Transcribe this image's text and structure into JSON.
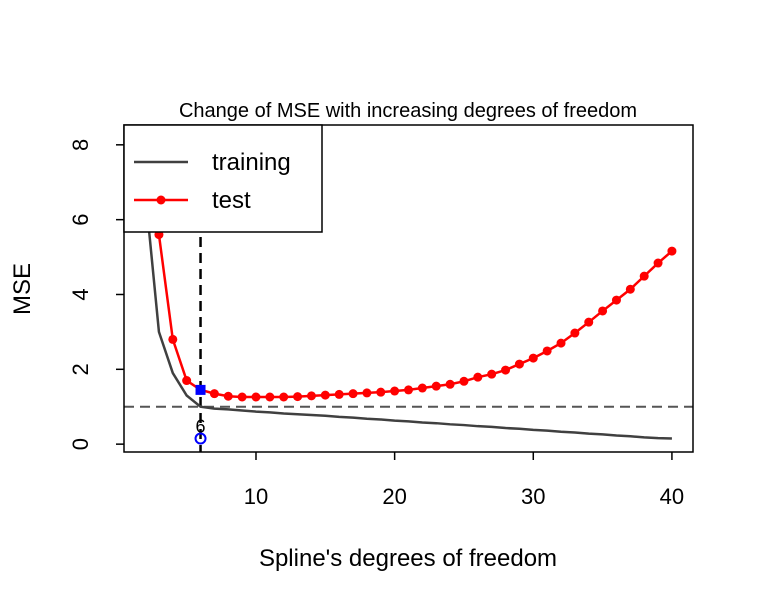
{
  "chart_data": {
    "type": "line",
    "title": "Change of MSE with increasing degrees of freedom",
    "x_label": "Spline's degrees of freedom",
    "y_label": "MSE",
    "x": [
      2,
      3,
      4,
      5,
      6,
      7,
      8,
      9,
      10,
      11,
      12,
      13,
      14,
      15,
      16,
      17,
      18,
      19,
      20,
      21,
      22,
      23,
      24,
      25,
      26,
      27,
      28,
      29,
      30,
      31,
      32,
      33,
      34,
      35,
      36,
      37,
      38,
      39,
      40
    ],
    "series": [
      {
        "name": "training",
        "color": "#404040",
        "markers": false,
        "values": [
          6.8,
          3.0,
          1.9,
          1.3,
          1.0,
          0.95,
          0.93,
          0.9,
          0.87,
          0.85,
          0.82,
          0.8,
          0.78,
          0.76,
          0.73,
          0.71,
          0.68,
          0.66,
          0.63,
          0.61,
          0.58,
          0.56,
          0.53,
          0.51,
          0.48,
          0.46,
          0.43,
          0.41,
          0.38,
          0.36,
          0.33,
          0.31,
          0.28,
          0.26,
          0.23,
          0.21,
          0.18,
          0.16,
          0.15
        ]
      },
      {
        "name": "test",
        "color": "#ff0000",
        "markers": true,
        "values": [
          8.2,
          5.6,
          2.8,
          1.7,
          1.45,
          1.35,
          1.28,
          1.26,
          1.26,
          1.26,
          1.26,
          1.27,
          1.29,
          1.31,
          1.33,
          1.35,
          1.37,
          1.39,
          1.42,
          1.45,
          1.5,
          1.55,
          1.6,
          1.68,
          1.79,
          1.87,
          1.98,
          2.14,
          2.3,
          2.49,
          2.7,
          2.97,
          3.26,
          3.56,
          3.85,
          4.14,
          4.49,
          4.84,
          5.16
        ]
      }
    ],
    "xlim": [
      0.48,
      41.52
    ],
    "ylim": [
      -0.21,
      8.53
    ],
    "xticks": [
      10,
      20,
      30,
      40
    ],
    "yticks": [
      0,
      2,
      4,
      6,
      8
    ],
    "hline": {
      "value": 1,
      "color": "#555555"
    },
    "vline": {
      "value": 6,
      "color": "#000000"
    },
    "highlight": {
      "x": 6,
      "y": 1.45,
      "color": "#0000ff"
    },
    "annotation": {
      "text": "6",
      "x": 6,
      "y": 0.15,
      "color": "#0000ff"
    },
    "legend": "top-left"
  }
}
